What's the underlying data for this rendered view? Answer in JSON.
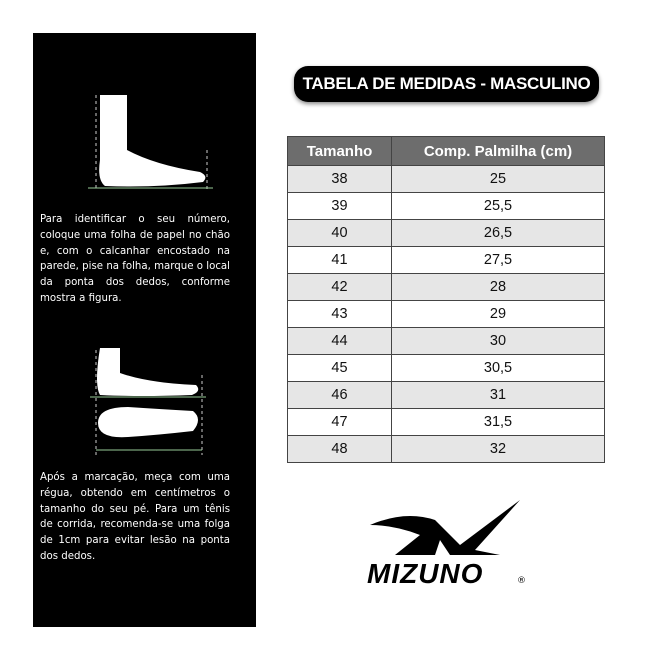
{
  "instructions": {
    "step1": "Para identificar o seu número, coloque uma folha de papel no chão e, com o calcanhar encostado na parede, pise na folha, marque o local da ponta dos dedos, conforme mostra a figura.",
    "step2": "Após a marcação, meça com uma régua, obtendo em centímetros o tamanho do seu pé. Para um tênis de corrida, recomenda-se uma folga de 1cm para evitar lesão na ponta dos dedos."
  },
  "title": "TABELA DE MEDIDAS - MASCULINO",
  "table": {
    "headers": [
      "Tamanho",
      "Comp. Palmilha (cm)"
    ],
    "rows": [
      [
        "38",
        "25"
      ],
      [
        "39",
        "25,5"
      ],
      [
        "40",
        "26,5"
      ],
      [
        "41",
        "27,5"
      ],
      [
        "42",
        "28"
      ],
      [
        "43",
        "29"
      ],
      [
        "44",
        "30"
      ],
      [
        "45",
        "30,5"
      ],
      [
        "46",
        "31"
      ],
      [
        "47",
        "31,5"
      ],
      [
        "48",
        "32"
      ]
    ]
  },
  "brand": {
    "name": "MIZUNO",
    "mark": "®"
  }
}
